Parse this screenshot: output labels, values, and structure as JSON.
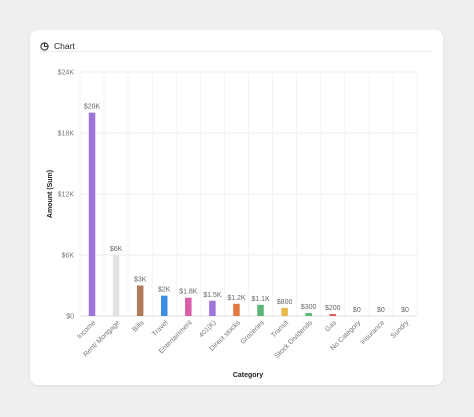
{
  "header": {
    "icon": "chart-icon",
    "title": "Chart"
  },
  "chart_data": {
    "type": "bar",
    "xlabel": "Category",
    "ylabel": "Amount (Sum)",
    "ylim": [
      0,
      24000
    ],
    "yticks": [
      0,
      6000,
      12000,
      18000,
      24000
    ],
    "ytick_labels": [
      "$0",
      "$6K",
      "$12K",
      "$18K",
      "$24K"
    ],
    "grid": true,
    "categories": [
      "Income",
      "Rent/ Mortgage",
      "Bills",
      "Travel",
      "Entertainment",
      "401(K)",
      "Direct stocks",
      "Groceries",
      "Transit",
      "Stock Dividends",
      "Gas",
      "No Category",
      "Insurance",
      "Sundry"
    ],
    "values": [
      20000,
      6000,
      3000,
      2000,
      1800,
      1500,
      1200,
      1100,
      800,
      300,
      200,
      0,
      0,
      0
    ],
    "value_labels": [
      "$20K",
      "$6K",
      "$3K",
      "$2K",
      "$1.8K",
      "$1.5K",
      "$1.2K",
      "$1.1K",
      "$800",
      "$300",
      "$200",
      "$0",
      "$0",
      "$0"
    ],
    "colors": [
      "#9f74d9",
      "#e3e1e1",
      "#b07a5a",
      "#3d8fe0",
      "#d85ea8",
      "#9f74d9",
      "#e07a40",
      "#5cb87a",
      "#e8b84a",
      "#5cb87a",
      "#e06060",
      "#9f74d9",
      "#3d8fe0",
      "#d85ea8"
    ]
  }
}
